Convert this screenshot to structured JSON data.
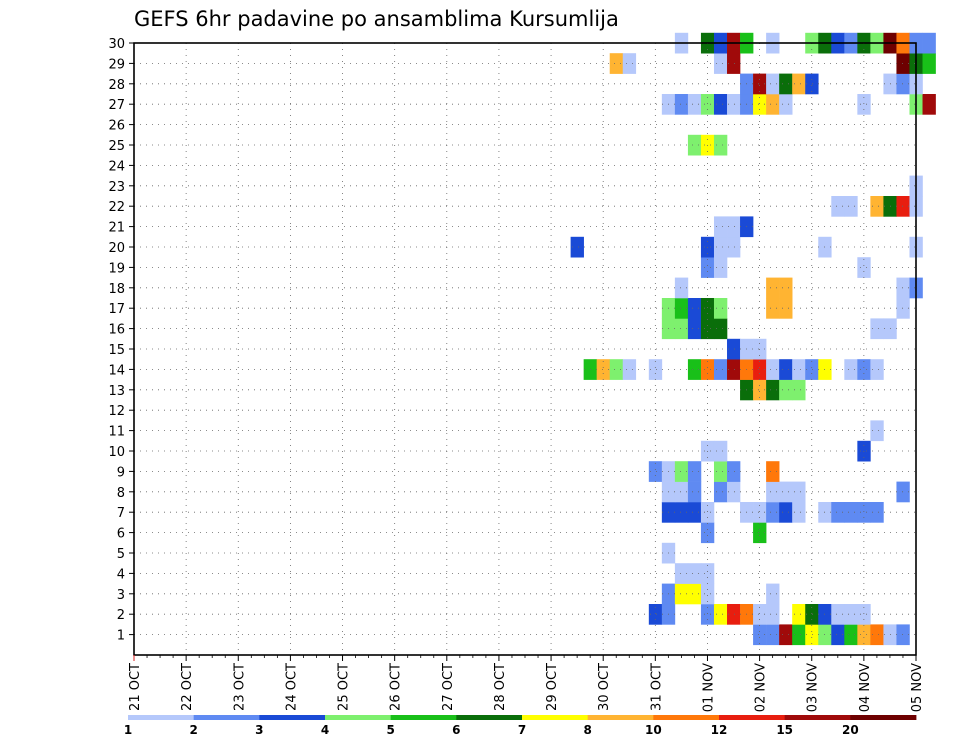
{
  "chart_data": {
    "type": "heatmap",
    "title": "GEFS 6hr padavine po ansamblima Kursumlija",
    "x_labels": [
      "21 OCT",
      "22 OCT",
      "23 OCT",
      "24 OCT",
      "25 OCT",
      "26 OCT",
      "27 OCT",
      "28 OCT",
      "29 OCT",
      "30 OCT",
      "31 OCT",
      "01 NOV",
      "02 NOV",
      "03 NOV",
      "04 NOV",
      "05 NOV"
    ],
    "y_labels": [
      "1",
      "2",
      "3",
      "4",
      "5",
      "6",
      "7",
      "8",
      "9",
      "10",
      "11",
      "12",
      "13",
      "14",
      "15",
      "16",
      "17",
      "18",
      "19",
      "20",
      "21",
      "22",
      "23",
      "24",
      "25",
      "26",
      "27",
      "28",
      "29",
      "30"
    ],
    "x_range_steps": [
      0,
      60
    ],
    "y_range": [
      0,
      30
    ],
    "grid": true,
    "legend": {
      "placement": "bottom",
      "labels": [
        "1",
        "2",
        "3",
        "4",
        "5",
        "6",
        "7",
        "8",
        "10",
        "12",
        "15",
        "20"
      ],
      "colors": [
        "#b5c8fb",
        "#5f8af2",
        "#1a4ad6",
        "#7ef06e",
        "#19c019",
        "#0a6e0a",
        "#ffff00",
        "#ffb432",
        "#ff780a",
        "#e81e0f",
        "#a00a0a",
        "#6e0000"
      ]
    },
    "cells": [
      [
        1,
        48,
        2
      ],
      [
        1,
        49,
        2
      ],
      [
        1,
        50,
        11
      ],
      [
        1,
        51,
        5
      ],
      [
        1,
        52,
        7
      ],
      [
        1,
        53,
        4
      ],
      [
        1,
        54,
        3
      ],
      [
        1,
        55,
        5
      ],
      [
        1,
        56,
        8
      ],
      [
        1,
        57,
        9
      ],
      [
        1,
        58,
        1
      ],
      [
        1,
        59,
        2
      ],
      [
        2,
        40,
        3
      ],
      [
        2,
        41,
        2
      ],
      [
        2,
        44,
        2
      ],
      [
        2,
        45,
        7
      ],
      [
        2,
        46,
        10
      ],
      [
        2,
        47,
        9
      ],
      [
        2,
        48,
        1
      ],
      [
        2,
        49,
        1
      ],
      [
        2,
        51,
        7
      ],
      [
        2,
        52,
        6
      ],
      [
        2,
        53,
        3
      ],
      [
        2,
        54,
        1
      ],
      [
        2,
        55,
        1
      ],
      [
        2,
        56,
        1
      ],
      [
        3,
        41,
        2
      ],
      [
        3,
        42,
        7
      ],
      [
        3,
        43,
        7
      ],
      [
        3,
        44,
        1
      ],
      [
        3,
        49,
        1
      ],
      [
        4,
        42,
        1
      ],
      [
        4,
        43,
        1
      ],
      [
        4,
        44,
        1
      ],
      [
        5,
        41,
        1
      ],
      [
        6,
        44,
        2
      ],
      [
        6,
        48,
        5
      ],
      [
        7,
        41,
        3
      ],
      [
        7,
        42,
        3
      ],
      [
        7,
        43,
        3
      ],
      [
        7,
        44,
        1
      ],
      [
        7,
        47,
        1
      ],
      [
        7,
        48,
        1
      ],
      [
        7,
        49,
        2
      ],
      [
        7,
        50,
        3
      ],
      [
        7,
        51,
        1
      ],
      [
        7,
        53,
        1
      ],
      [
        7,
        54,
        2
      ],
      [
        7,
        55,
        2
      ],
      [
        7,
        56,
        2
      ],
      [
        7,
        57,
        2
      ],
      [
        8,
        41,
        1
      ],
      [
        8,
        42,
        1
      ],
      [
        8,
        43,
        2
      ],
      [
        8,
        45,
        2
      ],
      [
        8,
        46,
        1
      ],
      [
        8,
        49,
        1
      ],
      [
        8,
        50,
        1
      ],
      [
        8,
        51,
        1
      ],
      [
        8,
        59,
        2
      ],
      [
        9,
        40,
        2
      ],
      [
        9,
        41,
        1
      ],
      [
        9,
        42,
        4
      ],
      [
        9,
        43,
        2
      ],
      [
        9,
        45,
        4
      ],
      [
        9,
        46,
        2
      ],
      [
        9,
        49,
        9
      ],
      [
        10,
        44,
        1
      ],
      [
        10,
        45,
        1
      ],
      [
        10,
        56,
        3
      ],
      [
        11,
        57,
        1
      ],
      [
        13,
        47,
        6
      ],
      [
        13,
        48,
        8
      ],
      [
        13,
        49,
        6
      ],
      [
        13,
        50,
        4
      ],
      [
        13,
        51,
        4
      ],
      [
        14,
        35,
        5
      ],
      [
        14,
        36,
        8
      ],
      [
        14,
        37,
        4
      ],
      [
        14,
        38,
        1
      ],
      [
        14,
        40,
        1
      ],
      [
        14,
        43,
        5
      ],
      [
        14,
        44,
        9
      ],
      [
        14,
        45,
        2
      ],
      [
        14,
        46,
        11
      ],
      [
        14,
        47,
        9
      ],
      [
        14,
        48,
        10
      ],
      [
        14,
        49,
        1
      ],
      [
        14,
        50,
        3
      ],
      [
        14,
        51,
        1
      ],
      [
        14,
        52,
        2
      ],
      [
        14,
        53,
        7
      ],
      [
        14,
        55,
        1
      ],
      [
        14,
        56,
        2
      ],
      [
        14,
        57,
        1
      ],
      [
        15,
        46,
        3
      ],
      [
        15,
        47,
        1
      ],
      [
        15,
        48,
        1
      ],
      [
        16,
        41,
        4
      ],
      [
        16,
        42,
        4
      ],
      [
        16,
        43,
        3
      ],
      [
        16,
        44,
        6
      ],
      [
        16,
        45,
        6
      ],
      [
        16,
        57,
        1
      ],
      [
        16,
        58,
        1
      ],
      [
        17,
        41,
        4
      ],
      [
        17,
        42,
        5
      ],
      [
        17,
        43,
        3
      ],
      [
        17,
        44,
        6
      ],
      [
        17,
        45,
        4
      ],
      [
        17,
        49,
        8
      ],
      [
        17,
        50,
        8
      ],
      [
        17,
        59,
        1
      ],
      [
        18,
        42,
        1
      ],
      [
        18,
        49,
        8
      ],
      [
        18,
        50,
        8
      ],
      [
        18,
        59,
        1
      ],
      [
        18,
        60,
        2
      ],
      [
        19,
        44,
        2
      ],
      [
        19,
        45,
        1
      ],
      [
        19,
        56,
        1
      ],
      [
        20,
        34,
        3
      ],
      [
        20,
        44,
        3
      ],
      [
        20,
        45,
        1
      ],
      [
        20,
        46,
        1
      ],
      [
        20,
        53,
        1
      ],
      [
        20,
        60,
        1
      ],
      [
        21,
        45,
        1
      ],
      [
        21,
        46,
        1
      ],
      [
        21,
        47,
        3
      ],
      [
        22,
        54,
        1
      ],
      [
        22,
        55,
        1
      ],
      [
        22,
        57,
        8
      ],
      [
        22,
        58,
        6
      ],
      [
        22,
        59,
        10
      ],
      [
        22,
        60,
        1
      ],
      [
        23,
        60,
        1
      ],
      [
        25,
        43,
        4
      ],
      [
        25,
        44,
        7
      ],
      [
        25,
        45,
        4
      ],
      [
        27,
        41,
        1
      ],
      [
        27,
        42,
        2
      ],
      [
        27,
        43,
        1
      ],
      [
        27,
        44,
        4
      ],
      [
        27,
        45,
        3
      ],
      [
        27,
        46,
        1
      ],
      [
        27,
        47,
        2
      ],
      [
        27,
        48,
        7
      ],
      [
        27,
        49,
        8
      ],
      [
        27,
        50,
        1
      ],
      [
        27,
        56,
        1
      ],
      [
        27,
        60,
        4
      ],
      [
        27,
        61,
        11
      ],
      [
        28,
        47,
        2
      ],
      [
        28,
        48,
        11
      ],
      [
        28,
        49,
        1
      ],
      [
        28,
        50,
        6
      ],
      [
        28,
        51,
        8
      ],
      [
        28,
        52,
        3
      ],
      [
        28,
        58,
        1
      ],
      [
        28,
        59,
        2
      ],
      [
        28,
        60,
        1
      ],
      [
        29,
        37,
        8
      ],
      [
        29,
        38,
        1
      ],
      [
        29,
        45,
        1
      ],
      [
        29,
        46,
        11
      ],
      [
        29,
        59,
        12
      ],
      [
        29,
        60,
        6
      ],
      [
        29,
        61,
        5
      ],
      [
        30,
        42,
        1
      ],
      [
        30,
        44,
        6
      ],
      [
        30,
        45,
        3
      ],
      [
        30,
        46,
        11
      ],
      [
        30,
        47,
        5
      ],
      [
        30,
        49,
        1
      ],
      [
        30,
        52,
        4
      ],
      [
        30,
        53,
        6
      ],
      [
        30,
        54,
        3
      ],
      [
        30,
        55,
        2
      ],
      [
        30,
        56,
        6
      ],
      [
        30,
        57,
        4
      ],
      [
        30,
        58,
        12
      ],
      [
        30,
        59,
        9
      ],
      [
        30,
        60,
        2
      ],
      [
        30,
        61,
        2
      ]
    ]
  }
}
